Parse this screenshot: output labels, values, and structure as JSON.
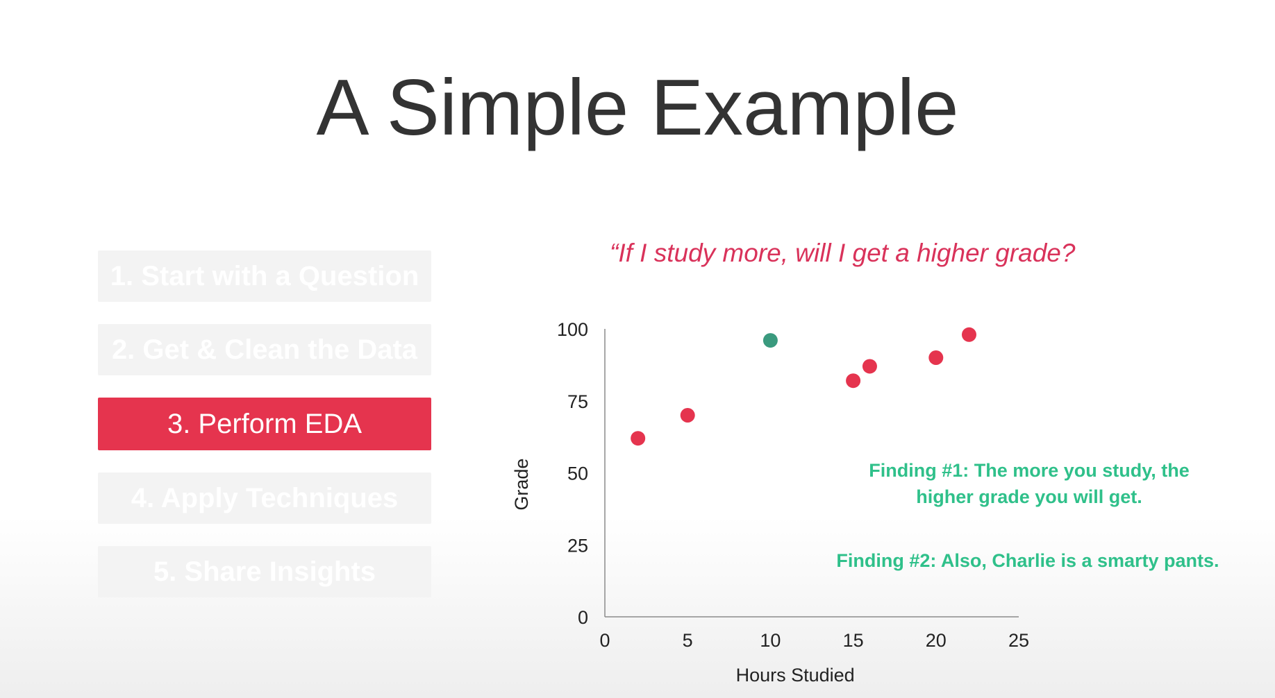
{
  "title": "A Simple Example",
  "steps": [
    {
      "label": "1. Start with a Question",
      "active": false
    },
    {
      "label": "2. Get & Clean the Data",
      "active": false
    },
    {
      "label": "3. Perform EDA",
      "active": true
    },
    {
      "label": "4. Apply Techniques",
      "active": false
    },
    {
      "label": "5. Share Insights",
      "active": false
    }
  ],
  "question": "“If I study more, will I get a higher grade?",
  "findings": {
    "finding1_line1": "Finding #1: The more you study, the",
    "finding1_line2": "higher grade you will get.",
    "finding2": "Finding #2: Also, Charlie is a smarty pants."
  },
  "colors": {
    "accent": "#e5344e",
    "point_default": "#e5344e",
    "point_highlight": "#3a9a7e",
    "finding_text": "#2fc08a",
    "question_text": "#d9325a"
  },
  "chart_data": {
    "type": "scatter",
    "xlabel": "Hours Studied",
    "ylabel": "Grade",
    "xlim": [
      0,
      25
    ],
    "ylim": [
      0,
      100
    ],
    "xticks": [
      0,
      5,
      10,
      15,
      20,
      25
    ],
    "yticks": [
      0,
      25,
      50,
      75,
      100
    ],
    "grid": false,
    "series": [
      {
        "points": [
          {
            "x": 2,
            "y": 62,
            "highlight": false
          },
          {
            "x": 5,
            "y": 70,
            "highlight": false
          },
          {
            "x": 10,
            "y": 96,
            "highlight": true
          },
          {
            "x": 15,
            "y": 82,
            "highlight": false
          },
          {
            "x": 16,
            "y": 87,
            "highlight": false
          },
          {
            "x": 20,
            "y": 90,
            "highlight": false
          },
          {
            "x": 22,
            "y": 98,
            "highlight": false
          }
        ]
      }
    ]
  }
}
